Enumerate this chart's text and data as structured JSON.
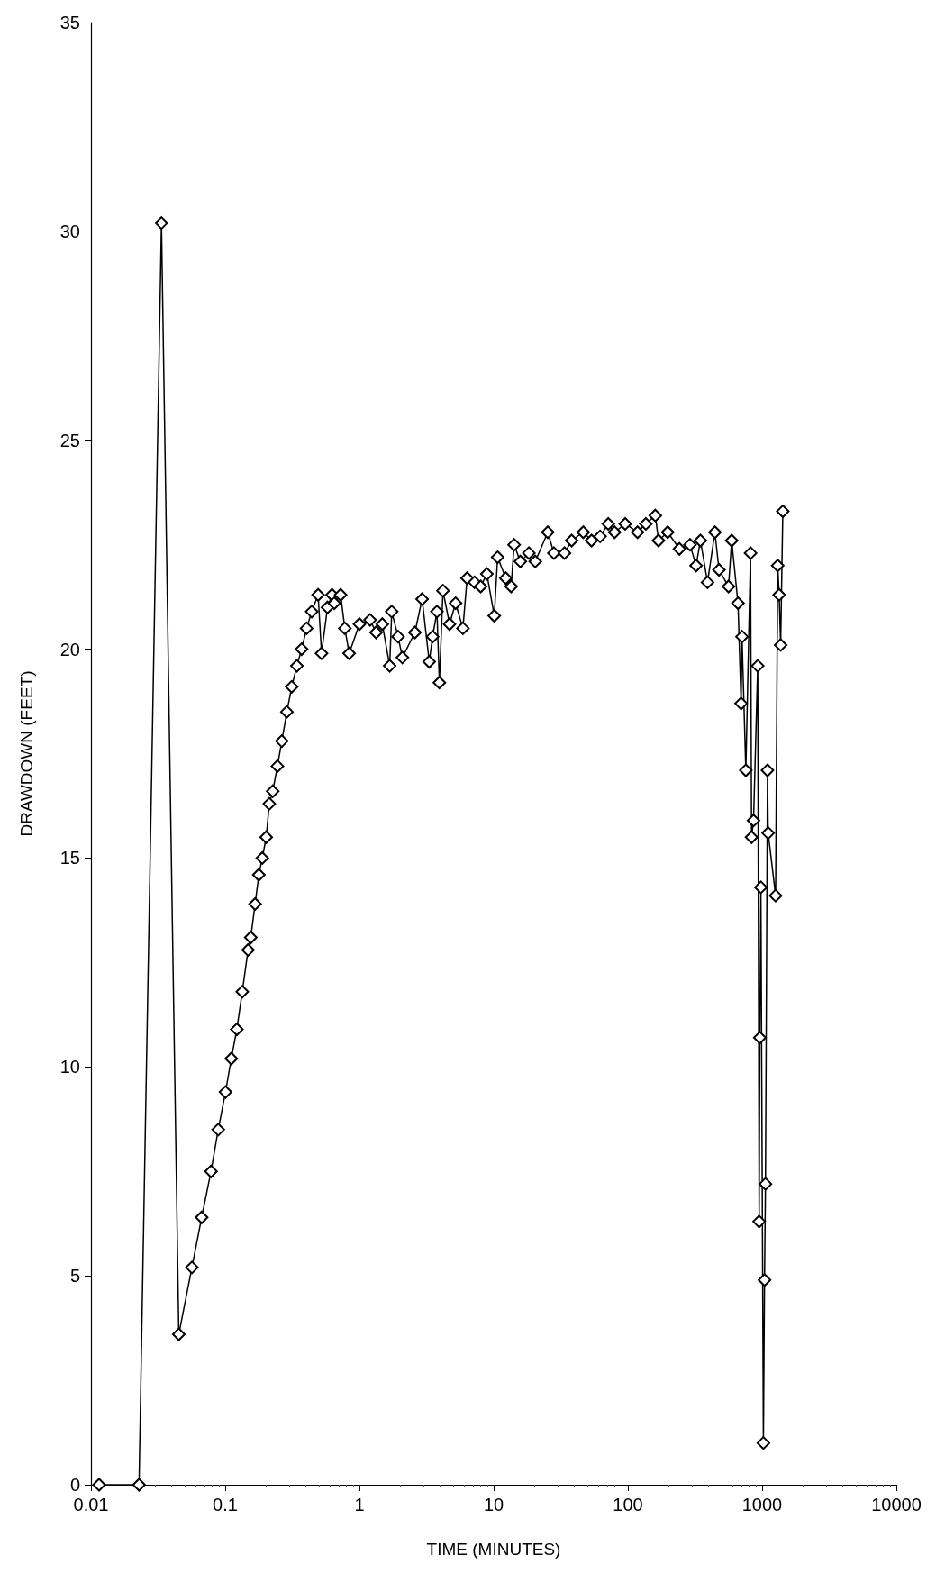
{
  "chart_data": {
    "type": "line",
    "xlabel": "TIME (MINUTES)",
    "ylabel": "DRAWDOWN (FEET)",
    "log": "x",
    "xlim": [
      0.01,
      10000
    ],
    "xticks": [
      0.01,
      0.1,
      1,
      10,
      100,
      1000,
      10000
    ],
    "ylim": [
      0,
      35
    ],
    "yticks": [
      0,
      5,
      10,
      15,
      20,
      25,
      30,
      35
    ],
    "grid": false,
    "marker": "diamond",
    "line_style": "solid",
    "series": [
      {
        "color": "#000000",
        "x": [
          0.0115,
          0.0228,
          0.0335,
          0.0451,
          0.0565,
          0.0668,
          0.0784,
          0.0887,
          0.1005,
          0.111,
          0.122,
          0.134,
          0.148,
          0.155,
          0.167,
          0.178,
          0.189,
          0.202,
          0.213,
          0.226,
          0.245,
          0.264,
          0.288,
          0.313,
          0.342,
          0.371,
          0.404,
          0.441,
          0.492,
          0.522,
          0.578,
          0.625,
          0.65,
          0.724,
          0.778,
          0.838,
          1.0,
          1.2,
          1.33,
          1.48,
          1.68,
          1.74,
          1.94,
          2.09,
          2.59,
          2.93,
          3.31,
          3.51,
          3.78,
          3.94,
          4.19,
          4.69,
          5.2,
          5.9,
          6.34,
          7.2,
          8.0,
          8.9,
          10.1,
          10.7,
          12.3,
          13.5,
          14.2,
          15.8,
          18.3,
          20.4,
          25.3,
          28.1,
          33.7,
          38.1,
          46.5,
          53.6,
          62.1,
          71.4,
          79.6,
          95.5,
          118,
          136,
          160,
          169,
          198,
          242,
          290,
          322,
          347,
          392,
          445,
          477,
          562,
          593,
          661,
          697,
          708,
          756,
          820,
          834,
          863,
          927,
          950,
          961,
          979,
          1022,
          1042,
          1059,
          1096,
          1109,
          1260,
          1306,
          1339,
          1374,
          1426
        ],
        "values": [
          0,
          0,
          30.2,
          3.6,
          5.2,
          6.4,
          7.5,
          8.5,
          9.4,
          10.2,
          10.9,
          11.8,
          12.8,
          13.1,
          13.9,
          14.6,
          15.0,
          15.5,
          16.3,
          16.6,
          17.2,
          17.8,
          18.5,
          19.1,
          19.6,
          20.0,
          20.5,
          20.9,
          21.3,
          19.9,
          21.0,
          21.3,
          21.1,
          21.3,
          20.5,
          19.9,
          20.6,
          20.7,
          20.4,
          20.6,
          19.6,
          20.9,
          20.3,
          19.8,
          20.4,
          21.2,
          19.7,
          20.3,
          20.9,
          19.2,
          21.4,
          20.6,
          21.1,
          20.5,
          21.7,
          21.6,
          21.5,
          21.8,
          20.8,
          22.2,
          21.7,
          21.5,
          22.5,
          22.1,
          22.3,
          22.1,
          22.8,
          22.3,
          22.3,
          22.6,
          22.8,
          22.6,
          22.7,
          23.0,
          22.8,
          23.0,
          22.8,
          23.0,
          23.2,
          22.6,
          22.8,
          22.4,
          22.5,
          22.0,
          22.6,
          21.6,
          22.8,
          21.9,
          21.5,
          22.6,
          21.1,
          18.7,
          20.3,
          17.1,
          22.3,
          15.5,
          15.9,
          19.6,
          6.3,
          10.7,
          14.3,
          1.0,
          4.9,
          7.2,
          17.1,
          15.6,
          14.1,
          22.0,
          21.3,
          20.1,
          23.3
        ]
      }
    ]
  }
}
